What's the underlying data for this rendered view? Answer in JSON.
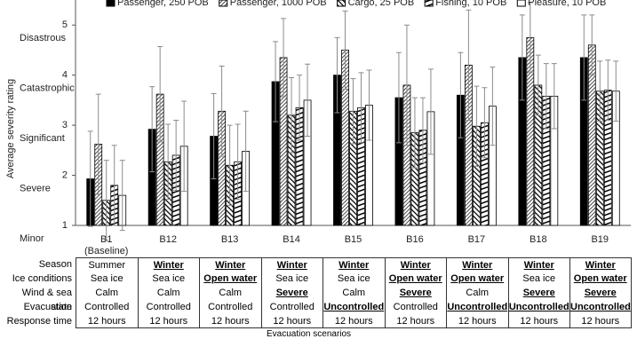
{
  "chart_data": {
    "type": "bar",
    "y_label": "Average severity rating",
    "x_label": "Evacuation scenarios",
    "annotations": [
      "Disastrous",
      "Catastrophic",
      "Significant",
      "Severe",
      "Minor"
    ],
    "categories": [
      "B1 (Baseline)",
      "B12",
      "B13",
      "B14",
      "B15",
      "B16",
      "B17",
      "B18",
      "B19"
    ],
    "series": [
      {
        "name": "Passenger, 250 POB",
        "color": "#000000",
        "fill": "solid",
        "values": [
          1.93,
          2.92,
          2.78,
          3.87,
          4.0,
          3.55,
          3.6,
          4.35,
          4.35
        ],
        "errors": [
          0.95,
          0.85,
          0.85,
          0.8,
          0.75,
          0.9,
          0.85,
          0.85,
          0.85
        ]
      },
      {
        "name": "Passenger, 1000 POB",
        "color": "#000000",
        "fill": "hatch-dense",
        "values": [
          2.62,
          3.62,
          3.28,
          4.35,
          4.5,
          3.8,
          4.2,
          4.75,
          4.6
        ],
        "errors": [
          1.0,
          0.95,
          0.9,
          0.78,
          0.78,
          1.2,
          1.1,
          0.7,
          0.6
        ]
      },
      {
        "name": "Cargo, 25 POB",
        "color": "#000000",
        "fill": "hatch-dark",
        "values": [
          1.5,
          2.27,
          2.2,
          3.2,
          3.28,
          2.85,
          2.98,
          3.8,
          3.68
        ],
        "errors": [
          0.8,
          0.75,
          0.8,
          0.75,
          0.65,
          0.7,
          0.8,
          0.6,
          0.6
        ]
      },
      {
        "name": "Fishing, 10 POB",
        "color": "#000000",
        "fill": "stripes",
        "values": [
          1.8,
          2.4,
          2.27,
          3.35,
          3.35,
          2.9,
          3.05,
          3.58,
          3.7
        ],
        "errors": [
          0.8,
          0.7,
          0.75,
          0.65,
          0.7,
          0.65,
          0.7,
          0.65,
          0.6
        ]
      },
      {
        "name": "Pleasure, 10 POB",
        "color": "#000000",
        "fill": "empty",
        "values": [
          1.6,
          2.58,
          2.48,
          3.5,
          3.4,
          3.27,
          3.38,
          3.58,
          3.68
        ],
        "errors": [
          0.7,
          0.9,
          0.8,
          0.72,
          0.7,
          0.85,
          0.78,
          0.65,
          0.6
        ]
      }
    ],
    "error_color": "#8c8c8c",
    "ylim": [
      1,
      5.5
    ],
    "yticks": [
      1,
      2,
      3,
      4,
      5
    ]
  },
  "table": {
    "row_headers": [
      "Season",
      "Ice conditions",
      "Wind & sea state",
      "Evacuation",
      "Response time"
    ],
    "rows": [
      [
        "Summer",
        "Winter",
        "Winter",
        "Winter",
        "Winter",
        "Winter",
        "Winter",
        "Winter",
        "Winter"
      ],
      [
        "Sea ice",
        "Sea ice",
        "Open water",
        "Sea ice",
        "Sea ice",
        "Open water",
        "Open water",
        "Sea ice",
        "Open water"
      ],
      [
        "Calm",
        "Calm",
        "Calm",
        "Severe",
        "Calm",
        "Severe",
        "Calm",
        "Severe",
        "Severe"
      ],
      [
        "Controlled",
        "Controlled",
        "Controlled",
        "Controlled",
        "Uncontrolled",
        "Controlled",
        "Uncontrolled",
        "Uncontrolled",
        "Uncontrolled"
      ],
      [
        "12 hours",
        "12 hours",
        "12 hours",
        "12 hours",
        "12 hours",
        "12 hours",
        "12 hours",
        "12 hours",
        "12 hours"
      ]
    ],
    "emphasized": [
      [
        false,
        true,
        true,
        true,
        true,
        true,
        true,
        true,
        true
      ],
      [
        false,
        false,
        true,
        false,
        false,
        true,
        true,
        false,
        true
      ],
      [
        false,
        false,
        false,
        true,
        false,
        true,
        false,
        true,
        true
      ],
      [
        false,
        false,
        false,
        false,
        true,
        false,
        true,
        true,
        true
      ],
      [
        false,
        false,
        false,
        false,
        false,
        false,
        false,
        false,
        false
      ]
    ]
  }
}
